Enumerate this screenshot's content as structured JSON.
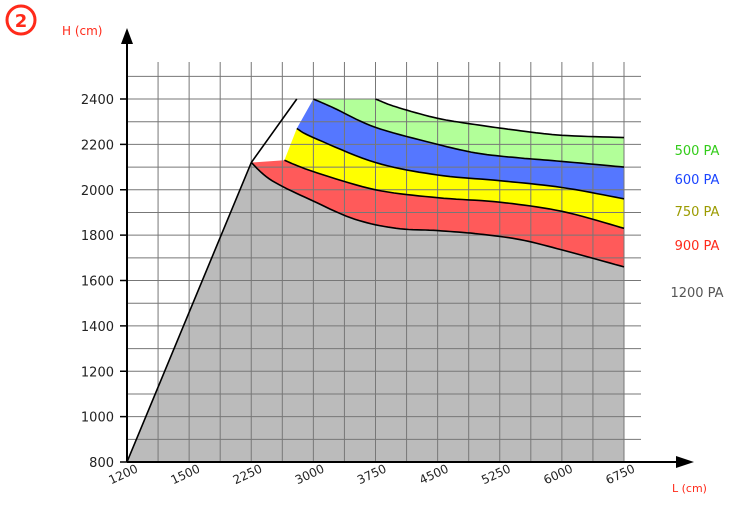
{
  "badge": {
    "number": "2",
    "color": "#ff2a1a"
  },
  "chart_data": {
    "type": "area",
    "title": "",
    "ylabel": "H (cm)",
    "xlabel": "L (cm)",
    "xlim": [
      1200,
      6750
    ],
    "ylim": [
      800,
      2400
    ],
    "x_ticks": [
      1200,
      1500,
      2250,
      3000,
      3750,
      4500,
      5250,
      6000,
      6750
    ],
    "y_ticks": [
      800,
      1000,
      1200,
      1400,
      1600,
      1800,
      2000,
      2200,
      2400
    ],
    "grid": true,
    "legend_position": "right",
    "series": [
      {
        "name": "500 PA",
        "color": "#b2ff99",
        "label_color": "#33cc1a",
        "boundary": [
          [
            3750,
            2400
          ],
          [
            4000,
            2365
          ],
          [
            4500,
            2315
          ],
          [
            5000,
            2285
          ],
          [
            5500,
            2260
          ],
          [
            6000,
            2240
          ],
          [
            6750,
            2230
          ]
        ]
      },
      {
        "name": "600 PA",
        "color": "#5577ff",
        "label_color": "#1a44ff",
        "boundary": [
          [
            3000,
            2400
          ],
          [
            3250,
            2360
          ],
          [
            3750,
            2275
          ],
          [
            4500,
            2200
          ],
          [
            5000,
            2160
          ],
          [
            5500,
            2140
          ],
          [
            6000,
            2125
          ],
          [
            6750,
            2100
          ]
        ]
      },
      {
        "name": "750 PA",
        "color": "#ffff00",
        "label_color": "#9b9b00",
        "boundary": [
          [
            2800,
            2270
          ],
          [
            3000,
            2230
          ],
          [
            3750,
            2120
          ],
          [
            4500,
            2065
          ],
          [
            5250,
            2040
          ],
          [
            6000,
            2010
          ],
          [
            6750,
            1960
          ]
        ]
      },
      {
        "name": "900 PA",
        "color": "#ff5a5a",
        "label_color": "#ff2a1a",
        "boundary": [
          [
            2650,
            2130
          ],
          [
            3000,
            2080
          ],
          [
            3750,
            2000
          ],
          [
            4500,
            1965
          ],
          [
            5250,
            1945
          ],
          [
            6000,
            1905
          ],
          [
            6750,
            1830
          ]
        ]
      },
      {
        "name": "1200 PA",
        "color": "#bbbbbb",
        "label_color": "#555555",
        "boundary": [
          [
            2250,
            2120
          ],
          [
            2500,
            2040
          ],
          [
            3000,
            1950
          ],
          [
            3500,
            1870
          ],
          [
            4000,
            1830
          ],
          [
            4500,
            1820
          ],
          [
            5000,
            1805
          ],
          [
            5500,
            1780
          ],
          [
            6000,
            1735
          ],
          [
            6750,
            1660
          ]
        ]
      }
    ],
    "envelope": [
      [
        1200,
        800
      ],
      [
        2250,
        2120
      ],
      [
        2800,
        2400
      ]
    ]
  }
}
